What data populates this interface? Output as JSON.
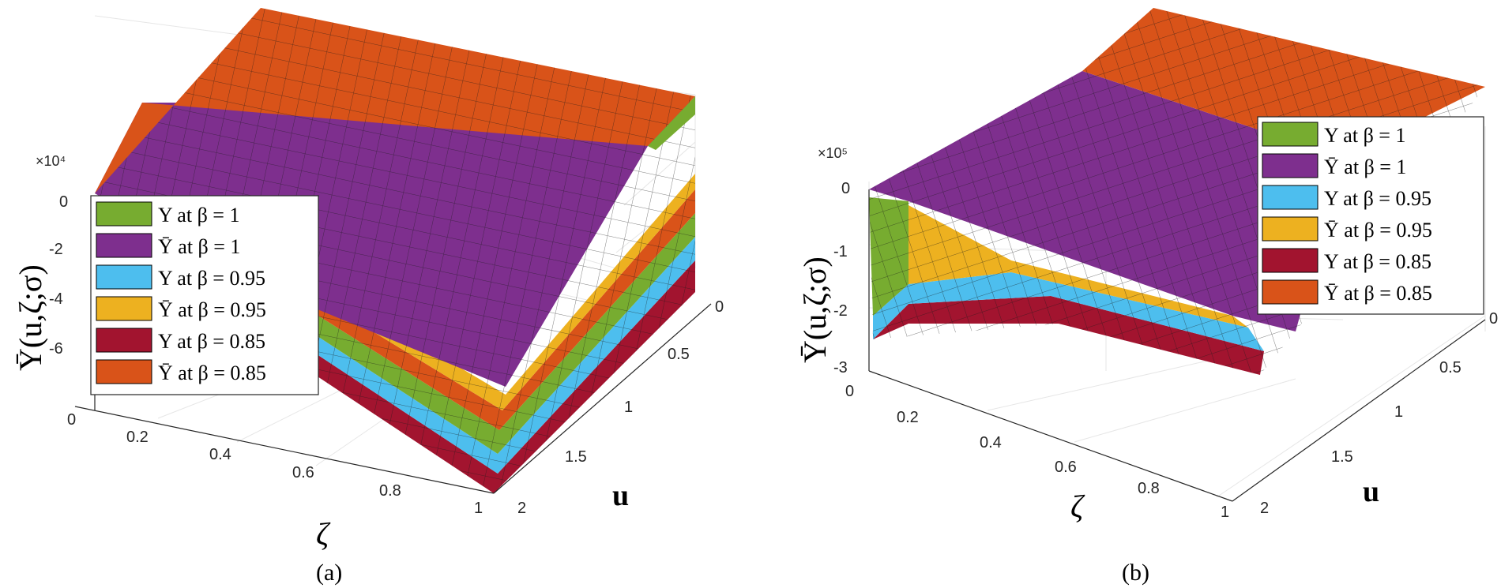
{
  "panels": [
    {
      "id": "a",
      "sub_label": "(a)",
      "exponent": "×10⁴",
      "ylabel": "Ῡ(u,ζ;σ)",
      "xlabel": "ζ",
      "zlabel": "u",
      "z_ticks": [
        "0",
        "-2",
        "-4",
        "-6"
      ],
      "x_ticks": [
        "0",
        "0.2",
        "0.4",
        "0.6",
        "0.8",
        "1"
      ],
      "u_ticks": [
        "0",
        "0.5",
        "1",
        "1.5",
        "2"
      ]
    },
    {
      "id": "b",
      "sub_label": "(b)",
      "exponent": "×10⁵",
      "ylabel": "Ῡ(u,ζ;σ)",
      "xlabel": "ζ",
      "zlabel": "u",
      "z_ticks": [
        "0",
        "-1",
        "-2",
        "-3"
      ],
      "x_ticks": [
        "0",
        "0.2",
        "0.4",
        "0.6",
        "0.8",
        "1"
      ],
      "u_ticks": [
        "0",
        "0.5",
        "1",
        "1.5",
        "2"
      ]
    }
  ],
  "legend": [
    {
      "label": "Υ at β = 1",
      "color": "#77ac30"
    },
    {
      "label": "Ῡ at β = 1",
      "color": "#7e2f8e"
    },
    {
      "label": "Υ at β = 0.95",
      "color": "#4dbeee"
    },
    {
      "label": "Ῡ at β = 0.95",
      "color": "#edb120"
    },
    {
      "label": "Υ at β = 0.85",
      "color": "#a2142f"
    },
    {
      "label": "Ῡ at β = 0.85",
      "color": "#d95319"
    }
  ],
  "chart_data": [
    {
      "type": "surface",
      "title": "",
      "exponent": "×10⁴",
      "zlabel": "Ῡ(u,ζ;σ)",
      "xlabel": "ζ",
      "ylabel": "u",
      "xlim": [
        0,
        1
      ],
      "ylim": [
        0,
        2
      ],
      "zlim": [
        -7,
        1
      ],
      "x_ticks": [
        0,
        0.2,
        0.4,
        0.6,
        0.8,
        1
      ],
      "y_ticks": [
        0,
        0.5,
        1,
        1.5,
        2
      ],
      "z_ticks": [
        0,
        -2,
        -4,
        -6
      ],
      "grid": true,
      "legend_position": "middle-left",
      "series": [
        {
          "name": "Υ at β = 1",
          "color": "#77ac30",
          "corner_values": {
            "zeta0_u0": 0,
            "zeta1_u0": 0,
            "zeta1_u2": -6.8
          }
        },
        {
          "name": "Ῡ at β = 1",
          "color": "#7e2f8e",
          "corner_values": {
            "zeta0_u0": 0,
            "zeta1_u0": 0,
            "zeta1_u2": -5.2
          }
        },
        {
          "name": "Υ at β = 0.95",
          "color": "#4dbeee",
          "corner_values": {
            "zeta0_u0": 0,
            "zeta1_u0": 0,
            "zeta1_u2": -7.2
          }
        },
        {
          "name": "Ῡ at β = 0.95",
          "color": "#edb120",
          "corner_values": {
            "zeta0_u0": 0,
            "zeta1_u0": 0,
            "zeta1_u2": -5.6
          }
        },
        {
          "name": "Υ at β = 0.85",
          "color": "#a2142f",
          "corner_values": {
            "zeta0_u0": 0,
            "zeta1_u0": 0,
            "zeta1_u2": -7.6
          }
        },
        {
          "name": "Ῡ at β = 0.85",
          "color": "#d95319",
          "corner_values": {
            "zeta0_u0": 0,
            "zeta1_u0": 0,
            "zeta1_u2": -5.8
          }
        }
      ]
    },
    {
      "type": "surface",
      "title": "",
      "exponent": "×10⁵",
      "zlabel": "Ῡ(u,ζ;σ)",
      "xlabel": "ζ",
      "ylabel": "u",
      "xlim": [
        0,
        1
      ],
      "ylim": [
        0,
        2
      ],
      "zlim": [
        -3,
        0
      ],
      "x_ticks": [
        0,
        0.2,
        0.4,
        0.6,
        0.8,
        1
      ],
      "y_ticks": [
        0,
        0.5,
        1,
        1.5,
        2
      ],
      "z_ticks": [
        0,
        -1,
        -2,
        -3
      ],
      "grid": true,
      "legend_position": "top-right",
      "series": [
        {
          "name": "Υ at β = 1",
          "color": "#77ac30",
          "corner_values": {
            "zeta0_u2": -2.0,
            "zeta1_u2": -2.1
          }
        },
        {
          "name": "Ῡ at β = 1",
          "color": "#7e2f8e",
          "corner_values": {
            "zeta0_u2": -1.3,
            "zeta1_u2": -1.9
          }
        },
        {
          "name": "Υ at β = 0.95",
          "color": "#4dbeee",
          "corner_values": {
            "zeta0_u2": -2.2,
            "zeta1_u2": -2.3
          }
        },
        {
          "name": "Ῡ at β = 0.95",
          "color": "#edb120",
          "corner_values": {
            "zeta0_u2": -1.6,
            "zeta1_u2": -2.0
          }
        },
        {
          "name": "Υ at β = 0.85",
          "color": "#a2142f",
          "corner_values": {
            "zeta0_u2": -2.5,
            "zeta1_u2": -2.6
          }
        },
        {
          "name": "Ῡ at β = 0.85",
          "color": "#d95319",
          "corner_values": {
            "zeta0_u2": 0.3,
            "zeta1_u2": 0.2
          }
        }
      ]
    }
  ]
}
